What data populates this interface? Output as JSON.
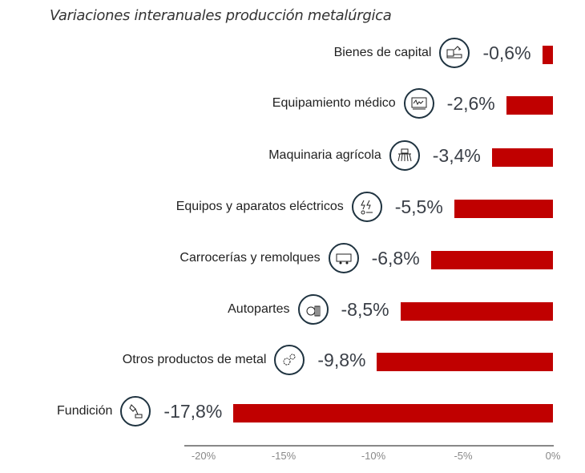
{
  "chart_data": {
    "type": "bar",
    "orientation": "horizontal",
    "title": "Variaciones interanuales producción metalúrgica",
    "categories": [
      "Bienes de capital",
      "Equipamiento médico",
      "Maquinaria agrícola",
      "Equipos y aparatos eléctricos",
      "Carrocerías y remolques",
      "Autopartes",
      "Otros productos de metal",
      "Fundición"
    ],
    "values": [
      -0.6,
      -2.6,
      -3.4,
      -5.5,
      -6.8,
      -8.5,
      -9.8,
      -17.8
    ],
    "value_labels": [
      "-0,6%",
      "-2,6%",
      "-3,4%",
      "-5,5%",
      "-6,8%",
      "-8,5%",
      "-9,8%",
      "-17,8%"
    ],
    "icons": [
      "machine-tool-icon",
      "medical-monitor-icon",
      "agricultural-machine-icon",
      "electrical-equipment-icon",
      "trailer-icon",
      "autoparts-icon",
      "gears-icon",
      "foundry-icon"
    ],
    "xlim": [
      -20,
      0
    ],
    "x_ticks": [
      -20,
      -15,
      -10,
      -5,
      0
    ],
    "x_tick_labels": [
      "-20%",
      "-15%",
      "-10%",
      "-5%",
      "0%"
    ],
    "bar_color": "#c00000",
    "grid": false
  }
}
